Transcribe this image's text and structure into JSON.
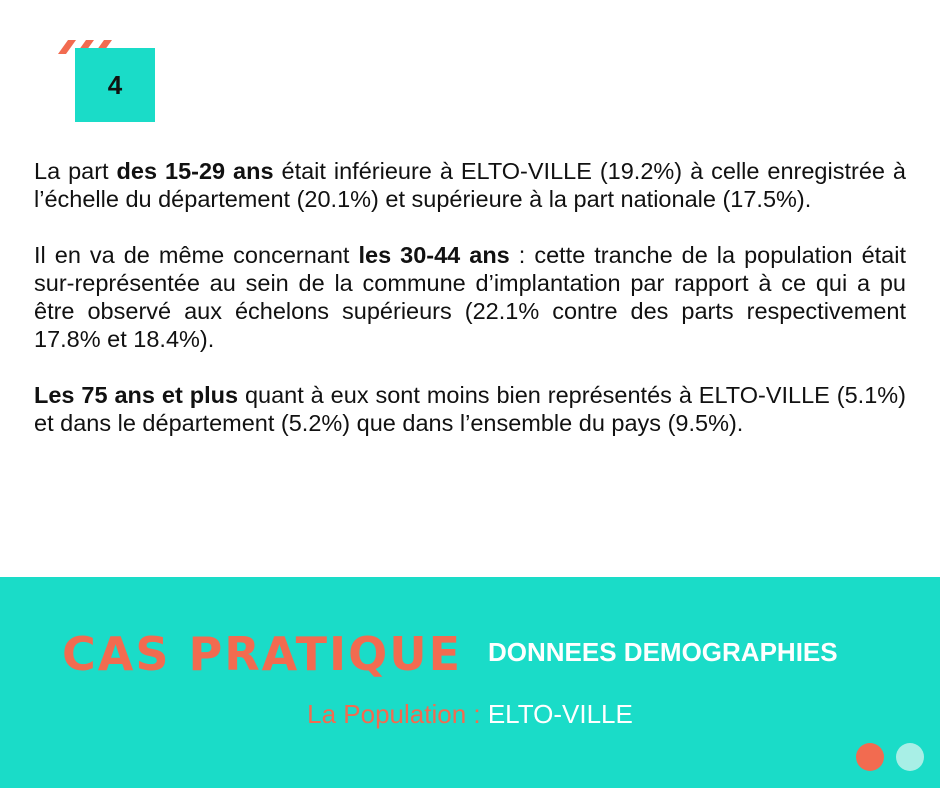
{
  "badge": {
    "label": "4"
  },
  "paragraphs": [
    {
      "runs": [
        {
          "text": "La part ",
          "bold": false
        },
        {
          "text": "des 15-29 ans",
          "bold": true
        },
        {
          "text": " était inférieure à ELTO-VILLE (19.2%) à celle enregistrée à l’échelle du département (20.1%) et supérieure à la part nationale (17.5%).",
          "bold": false
        }
      ]
    },
    {
      "runs": [
        {
          "text": "Il en va de même concernant ",
          "bold": false
        },
        {
          "text": "les 30-44 ans",
          "bold": true
        },
        {
          "text": " : cette tranche de la population était sur-représentée au sein de la commune d’implantation par rapport à ce qui a pu être observé aux échelons supérieurs (22.1% contre des parts respectivement 17.8% et 18.4%).",
          "bold": false
        }
      ]
    },
    {
      "runs": [
        {
          "text": "Les 75 ans et plus",
          "bold": true
        },
        {
          "text": " quant à eux sont moins bien représentés à ELTO-VILLE (5.1%) et dans le département (5.2%) que dans l’ensemble du pays (9.5%).",
          "bold": false
        }
      ]
    }
  ],
  "footer": {
    "title": "CAS PRATIQUE",
    "subtitle": "DONNEES DEMOGRAPHIES",
    "caption_label": "La Population : ",
    "caption_value": "ELTO-VILLE"
  }
}
